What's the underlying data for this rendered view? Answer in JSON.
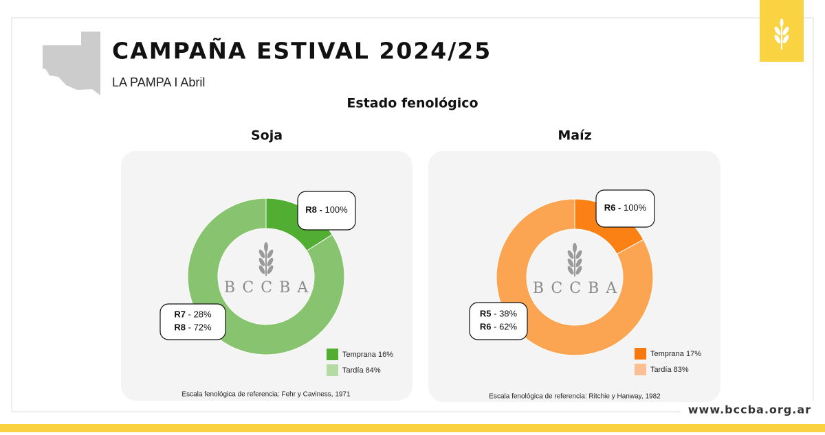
{
  "header": {
    "title": "CAMPAÑA ESTIVAL 2024/25",
    "subtitle": "LA PAMPA I Abril",
    "section": "Estado fenológico"
  },
  "chart_data": [
    {
      "type": "donut",
      "title": "Soja",
      "categories": [
        "Temprana",
        "Tardía"
      ],
      "values": [
        16,
        84
      ],
      "value_labels": [
        "16%",
        "84%"
      ],
      "colors": [
        "#52ae32",
        "#88c46f"
      ],
      "legend_colors": [
        "#52ae32",
        "#b5dba5"
      ],
      "callouts": [
        [
          {
            "stage": "R8 -",
            "rest": "100%"
          }
        ],
        [
          {
            "stage": "R7",
            "rest": "- 28%"
          },
          {
            "stage": "R8",
            "rest": "- 72%"
          }
        ]
      ],
      "watermark": "BCCBA",
      "source": "Escala fenológica de referencia: Fehr y Caviness, 1971"
    },
    {
      "type": "donut",
      "title": "Maíz",
      "categories": [
        "Temprana",
        "Tardía"
      ],
      "values": [
        17,
        83
      ],
      "value_labels": [
        "17%",
        "83%"
      ],
      "colors": [
        "#fb8114",
        "#fba452"
      ],
      "legend_colors": [
        "#f7790d",
        "#fcbf94"
      ],
      "callouts": [
        [
          {
            "stage": "R6 -",
            "rest": "100%"
          }
        ],
        [
          {
            "stage": "R5",
            "rest": "-  38%"
          },
          {
            "stage": "R6",
            "rest": "- 62%"
          }
        ]
      ],
      "watermark": "BCCBA",
      "source": "Escala fenológica de referencia: Ritchie y Hanway, 1982"
    }
  ],
  "footer": {
    "url": "www.bccba.org.ar"
  }
}
